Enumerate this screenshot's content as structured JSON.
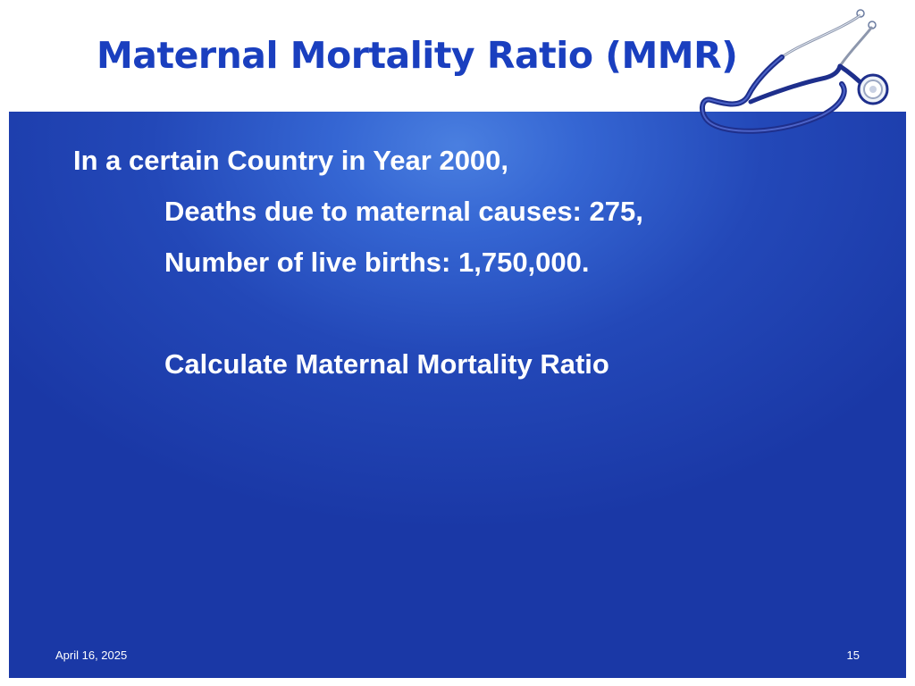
{
  "slide": {
    "title": "Maternal Mortality Ratio (MMR)",
    "body": {
      "line1": "In a certain Country in Year 2000,",
      "line2": "Deaths due to maternal causes: 275,",
      "line3": "Number of live births: 1,750,000.",
      "line4": "Calculate Maternal Mortality Ratio"
    },
    "footer": {
      "date": "April 16, 2025",
      "page_number": "15"
    }
  },
  "colors": {
    "title": "#1a3fbf",
    "panel": "#2348b8",
    "panel_highlight": "#4a7fe0",
    "body_text": "#ffffff"
  },
  "icons": {
    "decoration": "stethoscope-icon"
  }
}
